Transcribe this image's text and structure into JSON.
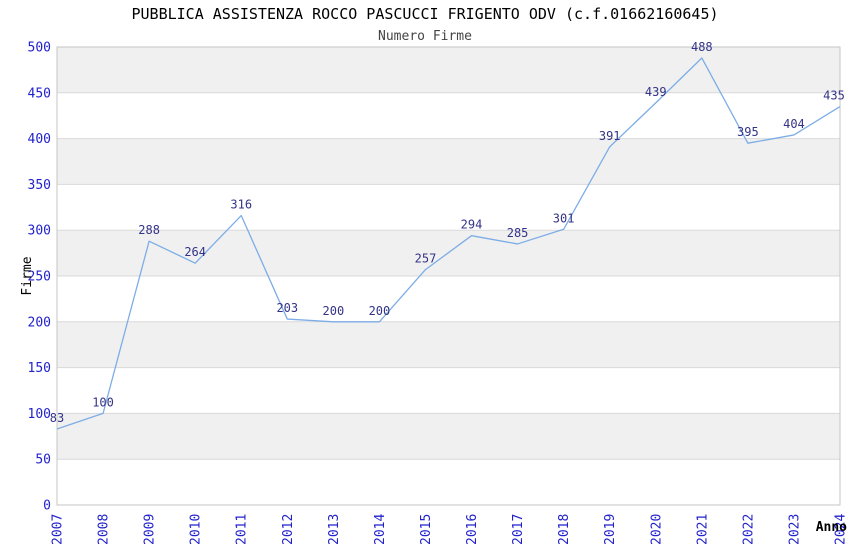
{
  "chart_data": {
    "type": "line",
    "title": "PUBBLICA ASSISTENZA ROCCO PASCUCCI FRIGENTO ODV (c.f.01662160645)",
    "subtitle": "Numero Firme",
    "xlabel": "Anno",
    "ylabel": "Firme",
    "x": [
      "2007",
      "2008",
      "2009",
      "2010",
      "2011",
      "2012",
      "2013",
      "2014",
      "2015",
      "2016",
      "2017",
      "2018",
      "2019",
      "2020",
      "2021",
      "2022",
      "2023",
      "2024"
    ],
    "series": [
      {
        "name": "Numero Firme",
        "values": [
          83,
          100,
          288,
          264,
          316,
          203,
          200,
          200,
          257,
          294,
          285,
          301,
          391,
          439,
          488,
          395,
          404,
          435
        ]
      }
    ],
    "ylim": [
      0,
      500
    ],
    "ytick_step": 50,
    "yticks": [
      0,
      50,
      100,
      150,
      200,
      250,
      300,
      350,
      400,
      450,
      500
    ],
    "grid": true,
    "banded_background": true,
    "legend_position": "none",
    "data_labels_visible": true,
    "colors": {
      "line": "#7dade6",
      "tick_label": "#2222cc",
      "data_label": "#333388",
      "band": "#f0f0f0",
      "grid": "#d9d9d9",
      "border": "#c6c6c6",
      "title": "#000000",
      "subtitle": "#444444",
      "axis_title": "#000000"
    }
  }
}
